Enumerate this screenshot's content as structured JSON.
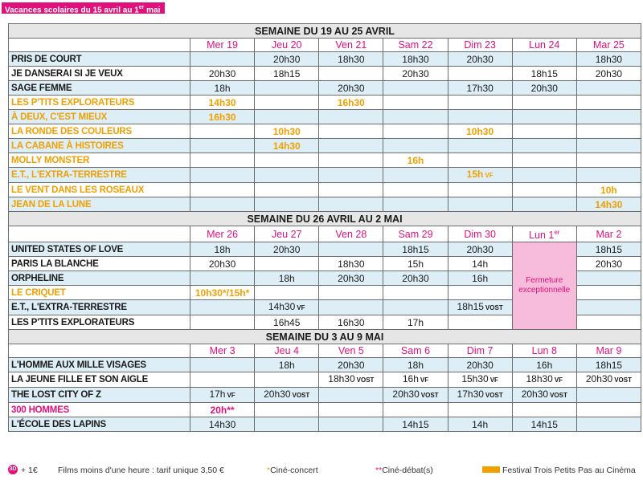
{
  "banner": {
    "main": "Vacances scolaires du 15 avril au 1",
    "sup": "er",
    "tail": " mai"
  },
  "weeks": [
    {
      "title": "SEMAINE DU 19 AU 25 AVRIL",
      "days": [
        "Mer 19",
        "Jeu 20",
        "Ven 21",
        "Sam 22",
        "Dim 23",
        "Lun 24",
        "Mar 25"
      ],
      "rows": [
        {
          "film": "PRIS DE COURT",
          "color": "",
          "cells": [
            "",
            "20h30",
            "18h30",
            "18h30",
            "20h30",
            "",
            "18h30"
          ]
        },
        {
          "film": "JE DANSERAI SI JE VEUX",
          "color": "",
          "cells": [
            "20h30",
            "18h15",
            "",
            "20h30",
            "",
            "18h15",
            "20h30"
          ]
        },
        {
          "film": "SAGE FEMME",
          "color": "",
          "cells": [
            "18h",
            "",
            "20h30",
            "",
            "17h30",
            "20h30",
            ""
          ]
        },
        {
          "film": "LES P'TITS EXPLORATEURS",
          "color": "orange",
          "cells": [
            "14h30",
            "",
            "16h30",
            "",
            "",
            "",
            ""
          ]
        },
        {
          "film": "À DEUX, C'EST MIEUX",
          "color": "orange",
          "cells": [
            "16h30",
            "",
            "",
            "",
            "",
            "",
            ""
          ]
        },
        {
          "film": "LA RONDE DES COULEURS",
          "color": "orange",
          "cells": [
            "",
            "10h30",
            "",
            "",
            "10h30",
            "",
            ""
          ]
        },
        {
          "film": "LA CABANE À HISTOIRES",
          "color": "orange",
          "cells": [
            "",
            "14h30",
            "",
            "",
            "",
            "",
            ""
          ]
        },
        {
          "film": "MOLLY MONSTER",
          "color": "orange",
          "cells": [
            "",
            "",
            "",
            "16h",
            "",
            "",
            ""
          ]
        },
        {
          "film": "E.T., L'EXTRA-TERRESTRE",
          "color": "orange",
          "cells": [
            "",
            "",
            "",
            "",
            "15h VF",
            "",
            ""
          ]
        },
        {
          "film": "LE VENT DANS LES ROSEAUX",
          "color": "orange",
          "cells": [
            "",
            "",
            "",
            "",
            "",
            "",
            "10h"
          ]
        },
        {
          "film": "JEAN DE LA LUNE",
          "color": "orange",
          "cells": [
            "",
            "",
            "",
            "",
            "",
            "",
            "14h30"
          ]
        }
      ]
    },
    {
      "title": "SEMAINE DU 26 AVRIL AU 2 MAI",
      "days": [
        "Mer 26",
        "Jeu 27",
        "Ven 28",
        "Sam 29",
        "Dim 30",
        "Lun 1er",
        "Mar 2"
      ],
      "closed_text": "Fermeture exceptionnelle",
      "rows": [
        {
          "film": "UNITED STATES OF LOVE",
          "color": "",
          "cells": [
            "18h",
            "20h30",
            "",
            "18h15",
            "20h30",
            "",
            "18h15"
          ]
        },
        {
          "film": "PARIS LA BLANCHE",
          "color": "",
          "cells": [
            "20h30",
            "",
            "18h30",
            "15h",
            "14h",
            "",
            "20h30"
          ]
        },
        {
          "film": "ORPHELINE",
          "color": "",
          "cells": [
            "",
            "18h",
            "20h30",
            "20h30",
            "16h",
            "",
            ""
          ]
        },
        {
          "film": "LE CRIQUET",
          "color": "orange",
          "cells": [
            "10h30*/15h*",
            "",
            "",
            "",
            "",
            "",
            ""
          ]
        },
        {
          "film": "E.T., L'EXTRA-TERRESTRE",
          "color": "",
          "cells": [
            "",
            "14h30 VF",
            "",
            "",
            "18h15 VOST",
            "",
            ""
          ]
        },
        {
          "film": "LES P'TITS EXPLORATEURS",
          "color": "",
          "cells": [
            "",
            "16h45",
            "16h30",
            "17h",
            "",
            "",
            ""
          ]
        }
      ]
    },
    {
      "title": "SEMAINE DU 3 AU 9 MAI",
      "days": [
        "Mer 3",
        "Jeu 4",
        "Ven 5",
        "Sam 6",
        "Dim 7",
        "Lun 8",
        "Mar 9"
      ],
      "rows": [
        {
          "film": "L'HOMME AUX MILLE VISAGES",
          "color": "",
          "cells": [
            "",
            "18h",
            "20h30",
            "18h",
            "20h30",
            "16h",
            "18h15"
          ]
        },
        {
          "film": "LA JEUNE FILLE ET SON AIGLE",
          "color": "",
          "cells": [
            "",
            "",
            "18h30 VOST",
            "16h VF",
            "15h30 VF",
            "18h30 VF",
            "20h30 VOST"
          ]
        },
        {
          "film": "THE LOST CITY OF Z",
          "color": "",
          "cells": [
            "17h VF",
            "20h30 VOST",
            "",
            "20h30 VOST",
            "17h30 VOST",
            "20h30 VOST",
            ""
          ]
        },
        {
          "film": "300 HOMMES",
          "color": "pink",
          "cells": [
            "20h**",
            "",
            "",
            "",
            "",
            "",
            ""
          ]
        },
        {
          "film": "L'ÉCOLE DES LAPINS",
          "color": "",
          "cells": [
            "14h30",
            "",
            "",
            "14h15",
            "14h",
            "14h15",
            ""
          ]
        }
      ]
    }
  ],
  "footer": {
    "badge": "3D",
    "plus": "+ 1€",
    "short_films": "Films moins d'une heure : tarif unique 3,50 €",
    "cine_concert_star": "*",
    "cine_concert": "Ciné-concert",
    "cine_debat_star": "**",
    "cine_debat": "Ciné-débat(s)",
    "festival": "Festival Trois Petits Pas au Cinéma",
    "festival_color": "#f0a000"
  },
  "colors": {
    "accent": "#e0117a",
    "festival": "#f0a000",
    "row_alt": "#ddeef7",
    "closed": "#f7bcdb"
  }
}
